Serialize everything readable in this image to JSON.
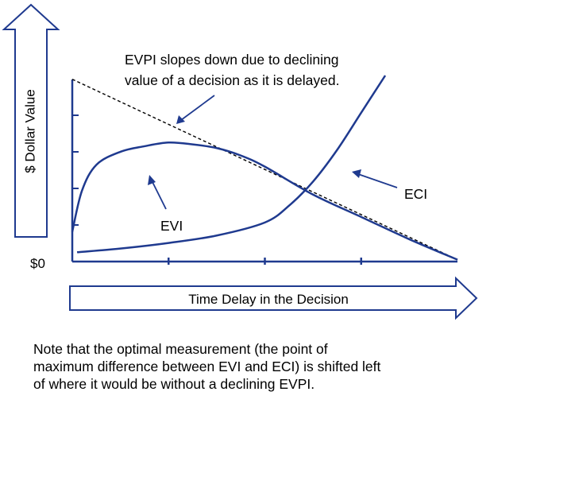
{
  "chart_data": {
    "type": "line",
    "title": "",
    "xlabel": "Time Delay in the Decision",
    "ylabel": "$ Dollar Value",
    "y_origin_label": "$0",
    "xlim": [
      0,
      4
    ],
    "ylim": [
      0,
      5
    ],
    "grid": false,
    "legend": "none",
    "series": [
      {
        "name": "EVPI",
        "style": "dashed",
        "color": "#000000",
        "x": [
          0,
          4
        ],
        "y": [
          4.9,
          0.05
        ]
      },
      {
        "name": "EVI",
        "style": "solid",
        "color": "#1f3a8f",
        "x": [
          0.0,
          0.1,
          0.25,
          0.5,
          0.75,
          1.0,
          1.25,
          1.5,
          1.75,
          2.0,
          2.5,
          3.0,
          3.5,
          4.0
        ],
        "y": [
          0.8,
          1.9,
          2.6,
          2.95,
          3.1,
          3.2,
          3.15,
          3.05,
          2.85,
          2.55,
          1.8,
          1.2,
          0.6,
          0.05
        ]
      },
      {
        "name": "ECI",
        "style": "solid",
        "color": "#1f3a8f",
        "x": [
          0.05,
          0.5,
          1.0,
          1.5,
          2.0,
          2.25,
          2.5,
          2.75,
          3.0,
          3.25
        ],
        "y": [
          0.25,
          0.35,
          0.5,
          0.7,
          1.05,
          1.5,
          2.15,
          3.0,
          4.0,
          5.0
        ]
      }
    ],
    "annotations": [
      {
        "text": "EVPI slopes down due to declining value of a decision as it is delayed.",
        "lines": [
          "EVPI slopes down due to declining",
          "value of a decision as it is delayed."
        ]
      },
      {
        "text": "EVI"
      },
      {
        "text": "ECI"
      }
    ]
  },
  "note": {
    "lines": [
      "Note that the optimal measurement (the point of",
      "maximum difference between EVI and ECI) is shifted left",
      "of where it would be without a declining EVPI."
    ]
  },
  "colors": {
    "curve": "#1f3a8f",
    "axis": "#1f3a8f",
    "dashed": "#000000"
  }
}
